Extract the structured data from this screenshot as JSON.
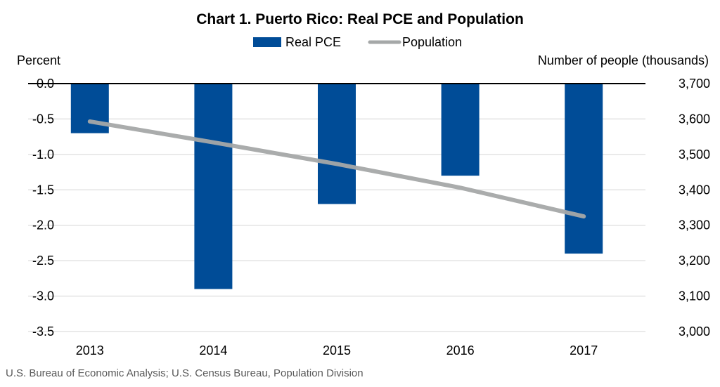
{
  "chart_data": {
    "type": "bar+line",
    "title": "Chart 1. Puerto Rico: Real PCE and Population",
    "categories": [
      "2013",
      "2014",
      "2015",
      "2016",
      "2017"
    ],
    "series": [
      {
        "name": "Real PCE",
        "type": "bar",
        "axis": "left",
        "color": "#004C97",
        "values": [
          -0.7,
          -2.9,
          -1.7,
          -1.3,
          -2.4
        ]
      },
      {
        "name": "Population",
        "type": "line",
        "axis": "right",
        "color": "#A5A8A8",
        "values": [
          3593,
          3534,
          3473,
          3406,
          3325
        ]
      }
    ],
    "y_left": {
      "label": "Percent",
      "range": [
        -3.5,
        0.0
      ],
      "ticks": [
        "0.0",
        "-0.5",
        "-1.0",
        "-1.5",
        "-2.0",
        "-2.5",
        "-3.0",
        "-3.5"
      ]
    },
    "y_right": {
      "label": "Number of people (thousands)",
      "range": [
        3000,
        3700
      ],
      "ticks": [
        "3,700",
        "3,600",
        "3,500",
        "3,400",
        "3,300",
        "3,200",
        "3,100",
        "3,000"
      ]
    },
    "grid": true,
    "legend": "top-center",
    "source": "U.S. Bureau of Economic Analysis; U.S. Census Bureau, Population Division"
  }
}
